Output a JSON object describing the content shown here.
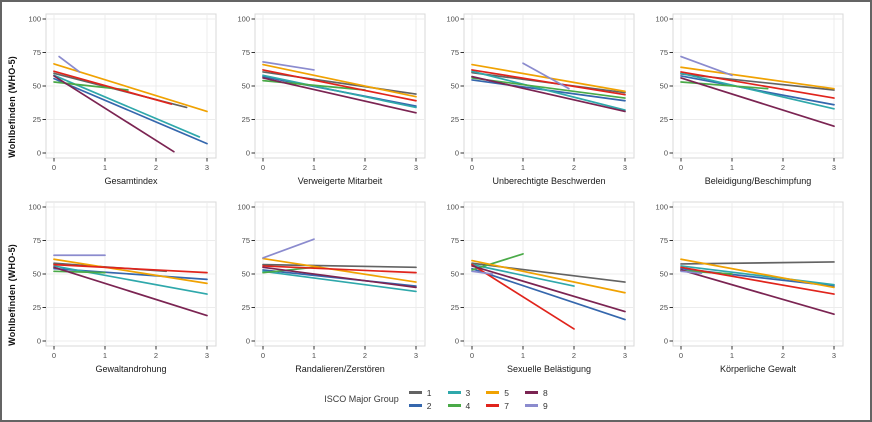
{
  "chart_data": {
    "type": "line",
    "ylabel": "Wohlbefinden (WHO-5)",
    "xlim": [
      0,
      3
    ],
    "ylim": [
      0,
      100
    ],
    "x_ticks": [
      "0",
      "1",
      "2",
      "3"
    ],
    "y_ticks": [
      "0",
      "25",
      "50",
      "75",
      "100"
    ],
    "grid": true,
    "legend": {
      "title": "ISCO Major Group",
      "position": "bottom",
      "entries": [
        {
          "label": "1",
          "color": "#636363"
        },
        {
          "label": "2",
          "color": "#3567ad"
        },
        {
          "label": "3",
          "color": "#2fa8ab"
        },
        {
          "label": "4",
          "color": "#4aaa48"
        },
        {
          "label": "5",
          "color": "#f0a202"
        },
        {
          "label": "7",
          "color": "#e0241c"
        },
        {
          "label": "8",
          "color": "#7b2452"
        },
        {
          "label": "9",
          "color": "#8b8bce"
        }
      ]
    },
    "panels": [
      {
        "xlabel": "Gesamtindex",
        "row": 0,
        "series": [
          {
            "group": "1",
            "x": [
              0,
              2.6
            ],
            "y": [
              59.5,
              34
            ]
          },
          {
            "group": "2",
            "x": [
              0,
              3
            ],
            "y": [
              55.5,
              7
            ]
          },
          {
            "group": "3",
            "x": [
              0,
              2.85
            ],
            "y": [
              58,
              12
            ]
          },
          {
            "group": "4",
            "x": [
              0,
              1.45
            ],
            "y": [
              53,
              47
            ]
          },
          {
            "group": "5",
            "x": [
              0,
              3
            ],
            "y": [
              66.5,
              31
            ]
          },
          {
            "group": "7",
            "x": [
              0,
              2.3
            ],
            "y": [
              61,
              36.5
            ]
          },
          {
            "group": "8",
            "x": [
              0,
              2.35
            ],
            "y": [
              57.5,
              1
            ]
          },
          {
            "group": "9",
            "x": [
              0.1,
              0.5
            ],
            "y": [
              72,
              60.5
            ]
          }
        ]
      },
      {
        "xlabel": "Verweigerte Mitarbeit",
        "row": 0,
        "series": [
          {
            "group": "1",
            "x": [
              0,
              3
            ],
            "y": [
              60.5,
              44
            ]
          },
          {
            "group": "2",
            "x": [
              0,
              3
            ],
            "y": [
              57,
              35
            ]
          },
          {
            "group": "3",
            "x": [
              0,
              3
            ],
            "y": [
              58,
              34
            ]
          },
          {
            "group": "4",
            "x": [
              0,
              2
            ],
            "y": [
              54,
              47
            ]
          },
          {
            "group": "5",
            "x": [
              0,
              3
            ],
            "y": [
              66,
              42
            ]
          },
          {
            "group": "7",
            "x": [
              0,
              3
            ],
            "y": [
              62,
              39
            ]
          },
          {
            "group": "8",
            "x": [
              0,
              3
            ],
            "y": [
              56,
              30
            ]
          },
          {
            "group": "9",
            "x": [
              0,
              1
            ],
            "y": [
              68,
              62
            ]
          }
        ]
      },
      {
        "xlabel": "Unberechtigte Beschwerden",
        "row": 0,
        "series": [
          {
            "group": "1",
            "x": [
              0,
              3
            ],
            "y": [
              60,
              45
            ]
          },
          {
            "group": "2",
            "x": [
              0,
              3
            ],
            "y": [
              54.5,
              39
            ]
          },
          {
            "group": "3",
            "x": [
              0,
              3
            ],
            "y": [
              61,
              32
            ]
          },
          {
            "group": "4",
            "x": [
              0,
              3
            ],
            "y": [
              56,
              41
            ]
          },
          {
            "group": "5",
            "x": [
              0,
              3
            ],
            "y": [
              66,
              46
            ]
          },
          {
            "group": "7",
            "x": [
              0,
              3
            ],
            "y": [
              62,
              43.5
            ]
          },
          {
            "group": "8",
            "x": [
              0,
              3
            ],
            "y": [
              57,
              31
            ]
          },
          {
            "group": "9",
            "x": [
              1,
              1.9
            ],
            "y": [
              67,
              48
            ]
          }
        ]
      },
      {
        "xlabel": "Beleidigung/Beschimpfung",
        "row": 0,
        "series": [
          {
            "group": "1",
            "x": [
              0,
              3
            ],
            "y": [
              59,
              47
            ]
          },
          {
            "group": "2",
            "x": [
              0,
              3
            ],
            "y": [
              57.5,
              36
            ]
          },
          {
            "group": "3",
            "x": [
              0,
              3
            ],
            "y": [
              59.5,
              33
            ]
          },
          {
            "group": "4",
            "x": [
              0,
              1.7
            ],
            "y": [
              53,
              48
            ]
          },
          {
            "group": "5",
            "x": [
              0,
              3
            ],
            "y": [
              64,
              48
            ]
          },
          {
            "group": "7",
            "x": [
              0,
              3
            ],
            "y": [
              60.5,
              41
            ]
          },
          {
            "group": "8",
            "x": [
              0,
              3
            ],
            "y": [
              56,
              20
            ]
          },
          {
            "group": "9",
            "x": [
              0,
              1
            ],
            "y": [
              72,
              58
            ]
          }
        ]
      },
      {
        "xlabel": "Gewaltandrohung",
        "row": 1,
        "series": [
          {
            "group": "1",
            "x": [
              0,
              2.2
            ],
            "y": [
              58,
              52
            ]
          },
          {
            "group": "2",
            "x": [
              0,
              3
            ],
            "y": [
              54,
              46
            ]
          },
          {
            "group": "3",
            "x": [
              0,
              3
            ],
            "y": [
              56,
              35
            ]
          },
          {
            "group": "4",
            "x": [
              0,
              1
            ],
            "y": [
              52,
              51
            ]
          },
          {
            "group": "5",
            "x": [
              0,
              3
            ],
            "y": [
              61,
              43
            ]
          },
          {
            "group": "7",
            "x": [
              0,
              3
            ],
            "y": [
              57,
              51
            ]
          },
          {
            "group": "8",
            "x": [
              0,
              3
            ],
            "y": [
              55,
              19
            ]
          },
          {
            "group": "9",
            "x": [
              0,
              1
            ],
            "y": [
              64,
              64
            ]
          }
        ]
      },
      {
        "xlabel": "Randalieren/Zerstören",
        "row": 1,
        "series": [
          {
            "group": "1",
            "x": [
              0,
              3
            ],
            "y": [
              57,
              55
            ]
          },
          {
            "group": "2",
            "x": [
              0,
              3
            ],
            "y": [
              53,
              41
            ]
          },
          {
            "group": "3",
            "x": [
              0,
              3
            ],
            "y": [
              52,
              37
            ]
          },
          {
            "group": "4",
            "x": [
              0,
              1
            ],
            "y": [
              51,
              55
            ]
          },
          {
            "group": "5",
            "x": [
              0,
              3
            ],
            "y": [
              61.5,
              44
            ]
          },
          {
            "group": "7",
            "x": [
              0,
              3
            ],
            "y": [
              56,
              51
            ]
          },
          {
            "group": "8",
            "x": [
              0,
              3
            ],
            "y": [
              55,
              40
            ]
          },
          {
            "group": "9",
            "x": [
              0,
              1
            ],
            "y": [
              62,
              76
            ]
          }
        ]
      },
      {
        "xlabel": "Sexuelle Belästigung",
        "row": 1,
        "series": [
          {
            "group": "1",
            "x": [
              0,
              3
            ],
            "y": [
              58,
              44
            ]
          },
          {
            "group": "2",
            "x": [
              0,
              3
            ],
            "y": [
              54,
              16
            ]
          },
          {
            "group": "3",
            "x": [
              0,
              2
            ],
            "y": [
              57,
              41
            ]
          },
          {
            "group": "4",
            "x": [
              0,
              1
            ],
            "y": [
              53,
              65
            ]
          },
          {
            "group": "5",
            "x": [
              0,
              3
            ],
            "y": [
              60,
              36
            ]
          },
          {
            "group": "7",
            "x": [
              0,
              2
            ],
            "y": [
              57,
              9
            ]
          },
          {
            "group": "8",
            "x": [
              0,
              3
            ],
            "y": [
              56,
              22
            ]
          },
          {
            "group": "9",
            "x": [
              0,
              0.4
            ],
            "y": [
              52,
              50
            ]
          }
        ]
      },
      {
        "xlabel": "Körperliche Gewalt",
        "row": 1,
        "series": [
          {
            "group": "1",
            "x": [
              0,
              3
            ],
            "y": [
              57.5,
              59
            ]
          },
          {
            "group": "2",
            "x": [
              0,
              3
            ],
            "y": [
              54,
              41
            ]
          },
          {
            "group": "3",
            "x": [
              0,
              3
            ],
            "y": [
              56,
              42
            ]
          },
          {
            "group": "4",
            "x": [
              0,
              1
            ],
            "y": [
              52.5,
              50
            ]
          },
          {
            "group": "5",
            "x": [
              0,
              3
            ],
            "y": [
              61,
              40
            ]
          },
          {
            "group": "7",
            "x": [
              0,
              3
            ],
            "y": [
              55,
              35
            ]
          },
          {
            "group": "8",
            "x": [
              0,
              3
            ],
            "y": [
              53,
              20
            ]
          },
          {
            "group": "9",
            "x": [
              0,
              0.4
            ],
            "y": [
              52,
              50.5
            ]
          }
        ]
      }
    ]
  }
}
